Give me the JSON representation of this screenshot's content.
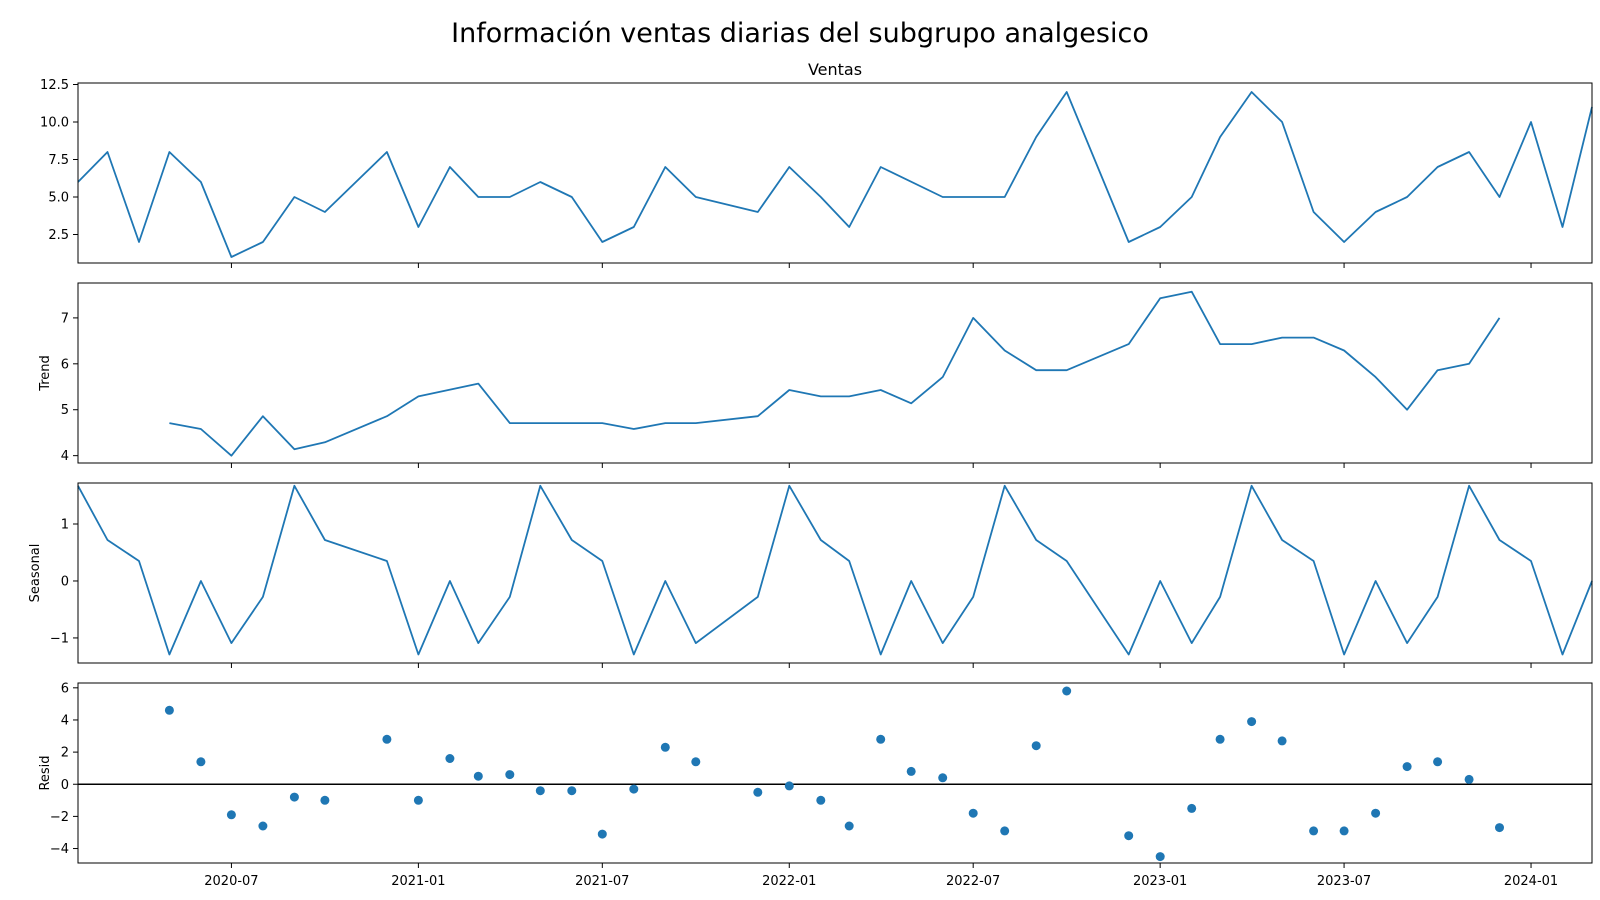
{
  "figure": {
    "title": "Información ventas diarias del subgrupo analgesico"
  },
  "colors": {
    "line": "#1f77b4",
    "axis": "#000000",
    "zero_line": "#000000"
  },
  "chart_data": [
    {
      "type": "line",
      "title": "Ventas",
      "ylabel": "",
      "ylim": [
        0.6,
        12.6
      ],
      "yticks": [
        2.5,
        5.0,
        7.5,
        10.0,
        12.5
      ],
      "ytick_labels": [
        "2.5",
        "5.0",
        "7.5",
        "10.0",
        "12.5"
      ],
      "xlim": [
        "2020-02-01",
        "2024-03-01"
      ],
      "x": [
        "2020-02-01",
        "2020-03-01",
        "2020-04-01",
        "2020-05-01",
        "2020-06-01",
        "2020-07-01",
        "2020-08-01",
        "2020-09-01",
        "2020-10-01",
        "2020-12-01",
        "2021-01-01",
        "2021-02-01",
        "2021-03-01",
        "2021-04-01",
        "2021-05-01",
        "2021-06-01",
        "2021-07-01",
        "2021-08-01",
        "2021-09-01",
        "2021-10-01",
        "2021-12-01",
        "2022-01-01",
        "2022-02-01",
        "2022-03-01",
        "2022-04-01",
        "2022-06-01",
        "2022-07-01",
        "2022-08-01",
        "2022-09-01",
        "2022-10-01",
        "2022-12-01",
        "2023-01-01",
        "2023-02-01",
        "2023-03-01",
        "2023-04-01",
        "2023-05-01",
        "2023-06-01",
        "2023-07-01",
        "2023-08-01",
        "2023-09-01",
        "2023-10-01",
        "2023-11-01",
        "2023-12-01",
        "2024-01-01",
        "2024-02-01",
        "2024-03-01"
      ],
      "y": [
        6,
        8,
        2,
        8,
        6,
        1,
        2,
        5,
        4,
        8,
        3,
        7,
        5,
        5,
        6,
        5,
        2,
        3,
        7,
        5,
        4,
        7,
        5,
        3,
        7,
        5,
        5,
        5,
        9,
        12,
        2,
        3,
        5,
        9,
        12,
        10,
        4,
        2,
        4,
        5,
        7,
        8,
        5,
        10,
        3,
        11
      ]
    },
    {
      "type": "line",
      "title": "",
      "ylabel": "Trend",
      "ylim": [
        3.84,
        7.76
      ],
      "yticks": [
        4,
        5,
        6,
        7
      ],
      "ytick_labels": [
        "4",
        "5",
        "6",
        "7"
      ],
      "xlim": [
        "2020-02-01",
        "2024-03-01"
      ],
      "x": [
        "2020-05-01",
        "2020-06-01",
        "2020-07-01",
        "2020-08-01",
        "2020-09-01",
        "2020-10-01",
        "2020-12-01",
        "2021-01-01",
        "2021-03-01",
        "2021-04-01",
        "2021-05-01",
        "2021-06-01",
        "2021-07-01",
        "2021-08-01",
        "2021-09-01",
        "2021-10-01",
        "2021-12-01",
        "2022-01-01",
        "2022-02-01",
        "2022-03-01",
        "2022-04-01",
        "2022-05-01",
        "2022-06-01",
        "2022-07-01",
        "2022-08-01",
        "2022-09-01",
        "2022-10-01",
        "2022-12-01",
        "2023-01-01",
        "2023-02-01",
        "2023-03-01",
        "2023-04-01",
        "2023-05-01",
        "2023-06-01",
        "2023-07-01",
        "2023-08-01",
        "2023-09-01",
        "2023-10-01",
        "2023-11-01",
        "2023-12-01"
      ],
      "y": [
        4.71,
        4.58,
        4.0,
        4.86,
        4.14,
        4.29,
        4.86,
        5.29,
        5.57,
        4.71,
        4.71,
        4.71,
        4.71,
        4.58,
        4.71,
        4.71,
        4.86,
        5.43,
        5.29,
        5.29,
        5.43,
        5.14,
        5.71,
        7.0,
        6.29,
        5.86,
        5.86,
        6.43,
        7.43,
        7.57,
        6.43,
        6.43,
        6.57,
        6.57,
        6.29,
        5.71,
        5.0,
        5.86,
        6.0,
        7.0
      ]
    },
    {
      "type": "line",
      "title": "",
      "ylabel": "Seasonal",
      "ylim": [
        -1.44,
        1.72
      ],
      "yticks": [
        -1,
        0,
        1
      ],
      "ytick_labels": [
        "−1",
        "0",
        "1"
      ],
      "xlim": [
        "2020-02-01",
        "2024-03-01"
      ],
      "x": [
        "2020-02-01",
        "2020-03-01",
        "2020-04-01",
        "2020-05-01",
        "2020-06-01",
        "2020-07-01",
        "2020-08-01",
        "2020-09-01",
        "2020-10-01",
        "2020-12-01",
        "2021-01-01",
        "2021-02-01",
        "2021-03-01",
        "2021-04-01",
        "2021-05-01",
        "2021-06-01",
        "2021-07-01",
        "2021-08-01",
        "2021-09-01",
        "2021-10-01",
        "2021-12-01",
        "2022-01-01",
        "2022-02-01",
        "2022-03-01",
        "2022-04-01",
        "2022-05-01",
        "2022-06-01",
        "2022-07-01",
        "2022-08-01",
        "2022-09-01",
        "2022-10-01",
        "2022-12-01",
        "2023-01-01",
        "2023-02-01",
        "2023-03-01",
        "2023-04-01",
        "2023-05-01",
        "2023-06-01",
        "2023-07-01",
        "2023-08-01",
        "2023-09-01",
        "2023-10-01",
        "2023-11-01",
        "2023-12-01",
        "2024-01-01",
        "2024-02-01",
        "2024-03-01"
      ],
      "y": [
        1.67,
        0.72,
        0.35,
        -1.29,
        0.0,
        -1.09,
        -0.28,
        1.67,
        0.72,
        0.35,
        -1.29,
        0.0,
        -1.09,
        -0.28,
        1.67,
        0.72,
        0.35,
        -1.29,
        0.0,
        -1.09,
        -0.28,
        1.67,
        0.72,
        0.35,
        -1.29,
        0.0,
        -1.09,
        -0.28,
        1.67,
        0.72,
        0.35,
        -1.29,
        0.0,
        -1.09,
        -0.28,
        1.67,
        0.72,
        0.35,
        -1.29,
        0.0,
        -1.09,
        -0.28,
        1.67,
        0.72,
        0.35,
        -1.29,
        0.0
      ]
    },
    {
      "type": "scatter",
      "title": "",
      "ylabel": "Resid",
      "ylim": [
        -4.9,
        6.3
      ],
      "yticks": [
        -4,
        -2,
        0,
        2,
        4,
        6
      ],
      "ytick_labels": [
        "−4",
        "−2",
        "0",
        "2",
        "4",
        "6"
      ],
      "xlim": [
        "2020-02-01",
        "2024-03-01"
      ],
      "hline": 0,
      "x": [
        "2020-05-01",
        "2020-06-01",
        "2020-07-01",
        "2020-08-01",
        "2020-09-01",
        "2020-10-01",
        "2020-12-01",
        "2021-01-01",
        "2021-02-01",
        "2021-03-01",
        "2021-04-01",
        "2021-05-01",
        "2021-06-01",
        "2021-07-01",
        "2021-08-01",
        "2021-09-01",
        "2021-10-01",
        "2021-12-01",
        "2022-01-01",
        "2022-02-01",
        "2022-03-01",
        "2022-04-01",
        "2022-05-01",
        "2022-06-01",
        "2022-07-01",
        "2022-08-01",
        "2022-09-01",
        "2022-10-01",
        "2022-12-01",
        "2023-01-01",
        "2023-02-01",
        "2023-03-01",
        "2023-04-01",
        "2023-05-01",
        "2023-06-01",
        "2023-07-01",
        "2023-08-01",
        "2023-09-01",
        "2023-10-01",
        "2023-11-01",
        "2023-12-01"
      ],
      "y": [
        4.6,
        1.4,
        -1.9,
        -2.6,
        -0.8,
        -1.0,
        2.8,
        -1.0,
        1.6,
        0.5,
        0.6,
        -0.4,
        -0.4,
        -3.1,
        -0.3,
        2.3,
        1.4,
        -0.5,
        -0.1,
        -1.0,
        -2.6,
        2.8,
        0.8,
        0.4,
        -1.8,
        -2.9,
        2.4,
        5.8,
        -3.2,
        -4.5,
        -1.5,
        2.8,
        3.9,
        2.7,
        -2.9,
        -2.9,
        -1.8,
        1.1,
        1.4,
        0.3,
        -2.7
      ]
    }
  ],
  "xaxis": {
    "ticks": [
      "2020-07-01",
      "2021-01-01",
      "2021-07-01",
      "2022-01-01",
      "2022-07-01",
      "2023-01-01",
      "2023-07-01",
      "2024-01-01"
    ],
    "tick_labels": [
      "2020-07",
      "2021-01",
      "2021-07",
      "2022-01",
      "2022-07",
      "2023-01",
      "2023-07",
      "2024-01"
    ]
  }
}
